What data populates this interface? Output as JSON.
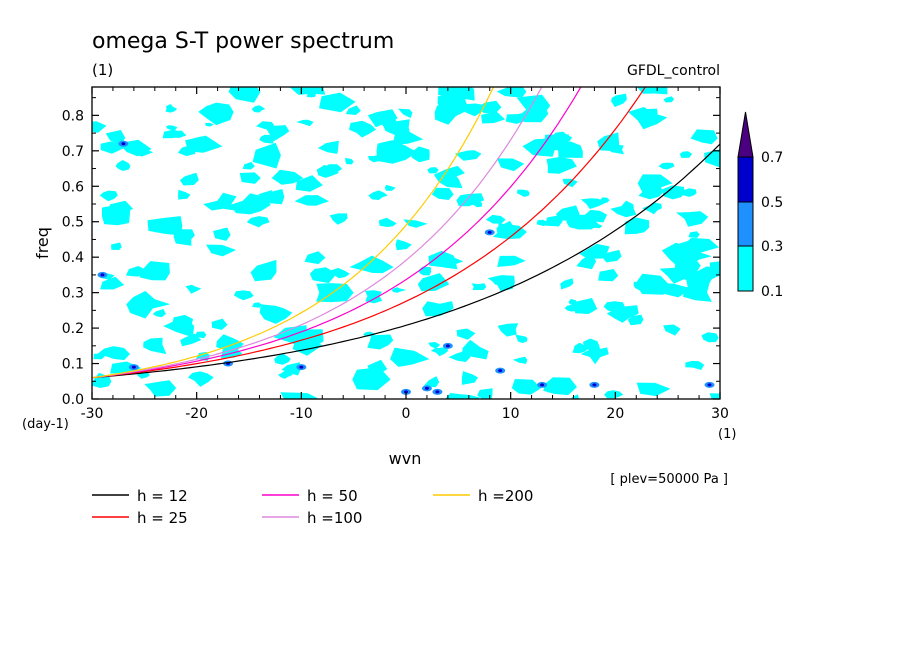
{
  "chart_data": {
    "type": "contour",
    "title": "omega S-T power spectrum",
    "subtitle_units": "(1)",
    "dataset_label": "GFDL_control",
    "xlabel": "wvn",
    "ylabel": "freq",
    "x_units": "(1)",
    "y_units": "(day-1)",
    "xlim": [
      -30,
      30
    ],
    "ylim": [
      0.0,
      0.88
    ],
    "x_ticks": [
      "-30",
      "-20",
      "-10",
      "0",
      "10",
      "20",
      "30"
    ],
    "y_ticks": [
      "0.0",
      "0.1",
      "0.2",
      "0.3",
      "0.4",
      "0.5",
      "0.6",
      "0.7",
      "0.8"
    ],
    "level_note": "[ plev=50000 Pa ]",
    "colorbar": {
      "levels": [
        "0.1",
        "0.3",
        "0.5",
        "0.7"
      ],
      "colors": [
        "#00ffff",
        "#1e90ff",
        "#0000cd",
        "#4b0082"
      ]
    },
    "dispersion_curves": [
      {
        "name": "h = 12",
        "color": "#000000",
        "h": 12
      },
      {
        "name": "h = 25",
        "color": "#ff0000",
        "h": 25
      },
      {
        "name": "h = 50",
        "color": "#ff00cc",
        "h": 50
      },
      {
        "name": "h =100",
        "color": "#dd88dd",
        "h": 100
      },
      {
        "name": "h =200",
        "color": "#ffcc00",
        "h": 200
      }
    ],
    "curve_anchor_freq_at_wvn_-30": 0.06,
    "grid": false,
    "legend_placement": "bottom-left"
  }
}
